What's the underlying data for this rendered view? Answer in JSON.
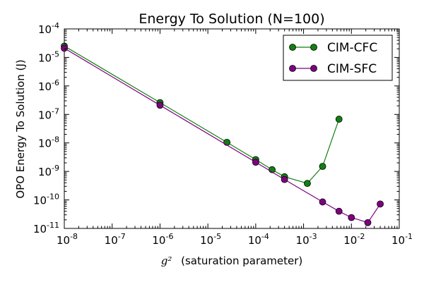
{
  "chart_data": {
    "type": "line",
    "title": "Energy To Solution (N=100)",
    "xlabel_symbol": "g²",
    "xlabel": "(saturation parameter)",
    "ylabel": "OPO Energy To Solution (J)",
    "xscale": "log",
    "yscale": "log",
    "xlim": [
      1e-08,
      0.1
    ],
    "ylim": [
      1e-11,
      0.0001
    ],
    "grid": false,
    "legend_position": "top-right",
    "x_ticks": [
      {
        "value": 1e-08,
        "base": "10",
        "exp": "-8"
      },
      {
        "value": 1e-07,
        "base": "10",
        "exp": "-7"
      },
      {
        "value": 1e-06,
        "base": "10",
        "exp": "-6"
      },
      {
        "value": 1e-05,
        "base": "10",
        "exp": "-5"
      },
      {
        "value": 0.0001,
        "base": "10",
        "exp": "-4"
      },
      {
        "value": 0.001,
        "base": "10",
        "exp": "-3"
      },
      {
        "value": 0.01,
        "base": "10",
        "exp": "-2"
      },
      {
        "value": 0.1,
        "base": "10",
        "exp": "-1"
      }
    ],
    "y_ticks": [
      {
        "value": 1e-11,
        "base": "10",
        "exp": "-11"
      },
      {
        "value": 1e-10,
        "base": "10",
        "exp": "-10"
      },
      {
        "value": 1e-09,
        "base": "10",
        "exp": "-9"
      },
      {
        "value": 1e-08,
        "base": "10",
        "exp": "-8"
      },
      {
        "value": 1e-07,
        "base": "10",
        "exp": "-7"
      },
      {
        "value": 1e-06,
        "base": "10",
        "exp": "-6"
      },
      {
        "value": 1e-05,
        "base": "10",
        "exp": "-5"
      },
      {
        "value": 0.0001,
        "base": "10",
        "exp": "-4"
      }
    ],
    "series": [
      {
        "name": "CIM-CFC",
        "color": "#118011",
        "x": [
          1e-08,
          1e-06,
          2.5e-05,
          0.0001,
          0.00022,
          0.0004,
          0.0012,
          0.0025,
          0.0055
        ],
        "y": [
          2.5e-05,
          2.6e-07,
          1.05e-08,
          2.6e-09,
          1.15e-09,
          6.5e-10,
          3.8e-10,
          1.5e-09,
          6.8e-08
        ]
      },
      {
        "name": "CIM-SFC",
        "color": "#800080",
        "x": [
          1e-08,
          1e-06,
          0.0001,
          0.0004,
          0.0025,
          0.0055,
          0.01,
          0.022,
          0.04
        ],
        "y": [
          2.1e-05,
          2.1e-07,
          2.1e-09,
          5.2e-10,
          8.5e-11,
          4e-11,
          2.4e-11,
          1.6e-11,
          7.2e-11
        ]
      }
    ]
  }
}
